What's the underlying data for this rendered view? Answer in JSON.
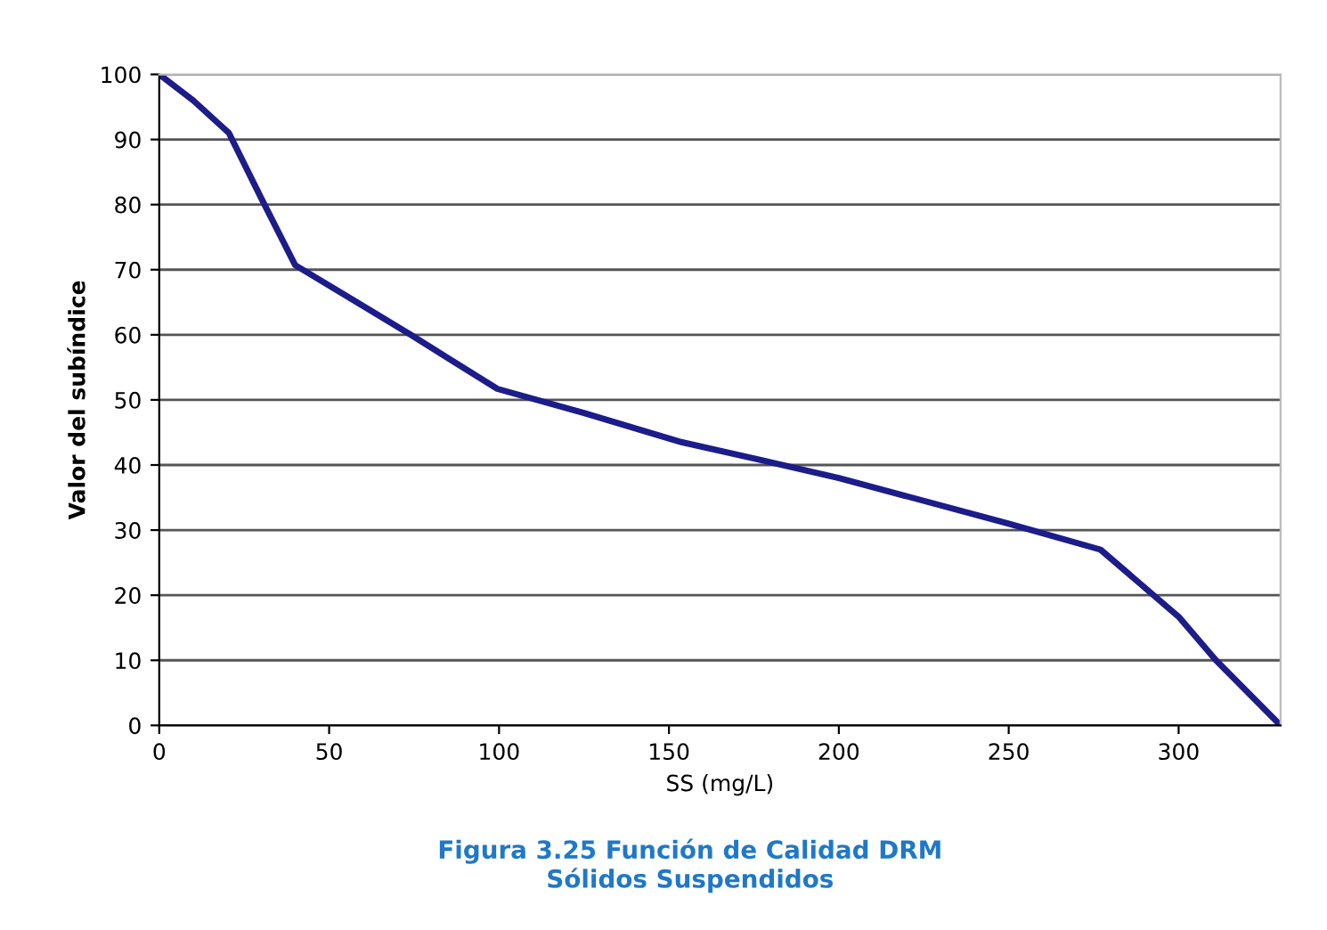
{
  "chart_data": {
    "type": "line",
    "title": "Figura 3.25 Función de Calidad DRM\nSólidos Suspendidos",
    "xlabel": "SS (mg/L)",
    "ylabel": "Valor del subíndice",
    "x": [
      0,
      10,
      20.5,
      30,
      40,
      55,
      74,
      99.5,
      125,
      153,
      175,
      200,
      250,
      277,
      300,
      311,
      330
    ],
    "series": [
      {
        "color": "#1c1c8a",
        "values": [
          100,
          96,
          91,
          81,
          70.7,
          66,
          60,
          51.7,
          48,
          43.6,
          41,
          38,
          31,
          27,
          16.7,
          10,
          0
        ]
      }
    ],
    "xlim": [
      0,
      330
    ],
    "ylim": [
      0,
      100
    ],
    "xticks": [
      0,
      50,
      100,
      150,
      200,
      250,
      300
    ],
    "yticks": [
      0,
      10,
      20,
      30,
      40,
      50,
      60,
      70,
      80,
      90,
      100
    ],
    "grid": "y",
    "legend": false,
    "marker": "none",
    "line_style": "solid"
  }
}
